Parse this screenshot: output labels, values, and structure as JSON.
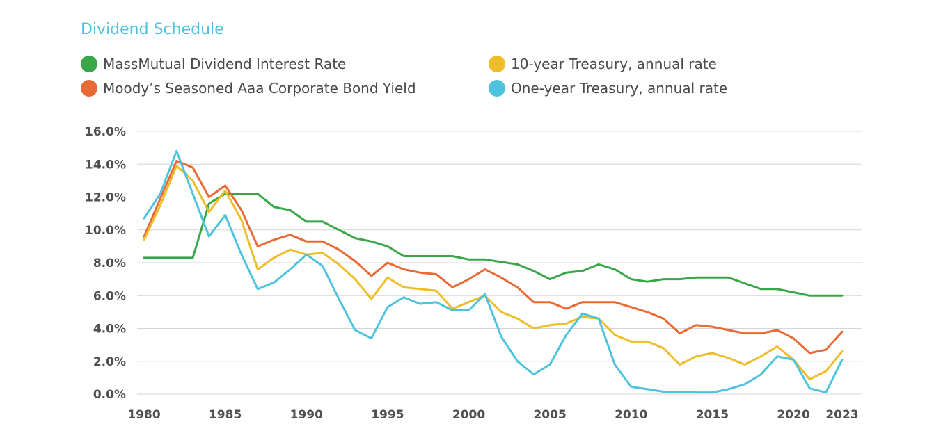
{
  "chart_data": {
    "type": "line",
    "title": "Dividend Schedule",
    "xlabel": "",
    "ylabel": "",
    "x": [
      1980,
      1981,
      1982,
      1983,
      1984,
      1985,
      1986,
      1987,
      1988,
      1989,
      1990,
      1991,
      1992,
      1993,
      1994,
      1995,
      1996,
      1997,
      1998,
      1999,
      2000,
      2001,
      2002,
      2003,
      2004,
      2005,
      2006,
      2007,
      2008,
      2009,
      2010,
      2011,
      2012,
      2013,
      2014,
      2015,
      2016,
      2017,
      2018,
      2019,
      2020,
      2021,
      2022,
      2023
    ],
    "x_ticks": [
      "1980",
      "1985",
      "1990",
      "1995",
      "2000",
      "2005",
      "2010",
      "2015",
      "2020",
      "2023"
    ],
    "y_ticks": [
      "0.0%",
      "2.0%",
      "4.0%",
      "6.0%",
      "8.0%",
      "10.0%",
      "12.0%",
      "14.0%",
      "16.0%"
    ],
    "ylim": [
      0,
      16
    ],
    "series": [
      {
        "name": "MassMutual Dividend Interest Rate",
        "color": "#3aa64a",
        "values": [
          8.3,
          8.3,
          8.3,
          8.3,
          11.6,
          12.2,
          12.2,
          12.2,
          11.4,
          11.2,
          10.5,
          10.5,
          10.0,
          9.5,
          9.3,
          9.0,
          8.4,
          8.4,
          8.4,
          8.4,
          8.2,
          8.2,
          8.05,
          7.9,
          7.5,
          7.0,
          7.4,
          7.5,
          7.9,
          7.6,
          7.0,
          6.85,
          7.0,
          7.0,
          7.1,
          7.1,
          7.1,
          6.75,
          6.4,
          6.4,
          6.2,
          6.0,
          6.0,
          6.0
        ]
      },
      {
        "name": "Moody’s Seasoned Aaa Corporate Bond Yield",
        "color": "#ea6a35",
        "values": [
          9.6,
          11.9,
          14.2,
          13.8,
          12.0,
          12.7,
          11.2,
          9.0,
          9.4,
          9.7,
          9.3,
          9.3,
          8.8,
          8.1,
          7.2,
          8.0,
          7.6,
          7.4,
          7.3,
          6.5,
          7.0,
          7.6,
          7.1,
          6.5,
          5.6,
          5.6,
          5.2,
          5.6,
          5.6,
          5.6,
          5.3,
          5.0,
          4.6,
          3.7,
          4.2,
          4.1,
          3.9,
          3.7,
          3.7,
          3.9,
          3.4,
          2.5,
          2.7,
          3.8
        ]
      },
      {
        "name": "10-year Treasury, annual rate",
        "color": "#f0bd2a",
        "values": [
          9.4,
          11.5,
          13.9,
          13.0,
          11.1,
          12.4,
          10.6,
          7.6,
          8.3,
          8.8,
          8.5,
          8.6,
          7.9,
          7.0,
          5.8,
          7.1,
          6.5,
          6.4,
          6.3,
          5.2,
          5.6,
          6.0,
          5.0,
          4.6,
          4.0,
          4.2,
          4.3,
          4.7,
          4.6,
          3.6,
          3.2,
          3.2,
          2.8,
          1.8,
          2.3,
          2.5,
          2.2,
          1.8,
          2.3,
          2.9,
          2.1,
          0.9,
          1.4,
          2.6
        ]
      },
      {
        "name": "One-year Treasury, annual rate",
        "color": "#4ec3de",
        "values": [
          10.7,
          12.2,
          14.8,
          12.2,
          9.6,
          10.9,
          8.5,
          6.4,
          6.8,
          7.6,
          8.5,
          7.8,
          5.8,
          3.9,
          3.4,
          5.3,
          5.9,
          5.5,
          5.6,
          5.1,
          5.1,
          6.1,
          3.5,
          2.0,
          1.2,
          1.8,
          3.6,
          4.9,
          4.6,
          1.8,
          0.45,
          0.3,
          0.15,
          0.15,
          0.1,
          0.1,
          0.3,
          0.6,
          1.2,
          2.3,
          2.1,
          0.35,
          0.1,
          2.1
        ]
      }
    ]
  }
}
